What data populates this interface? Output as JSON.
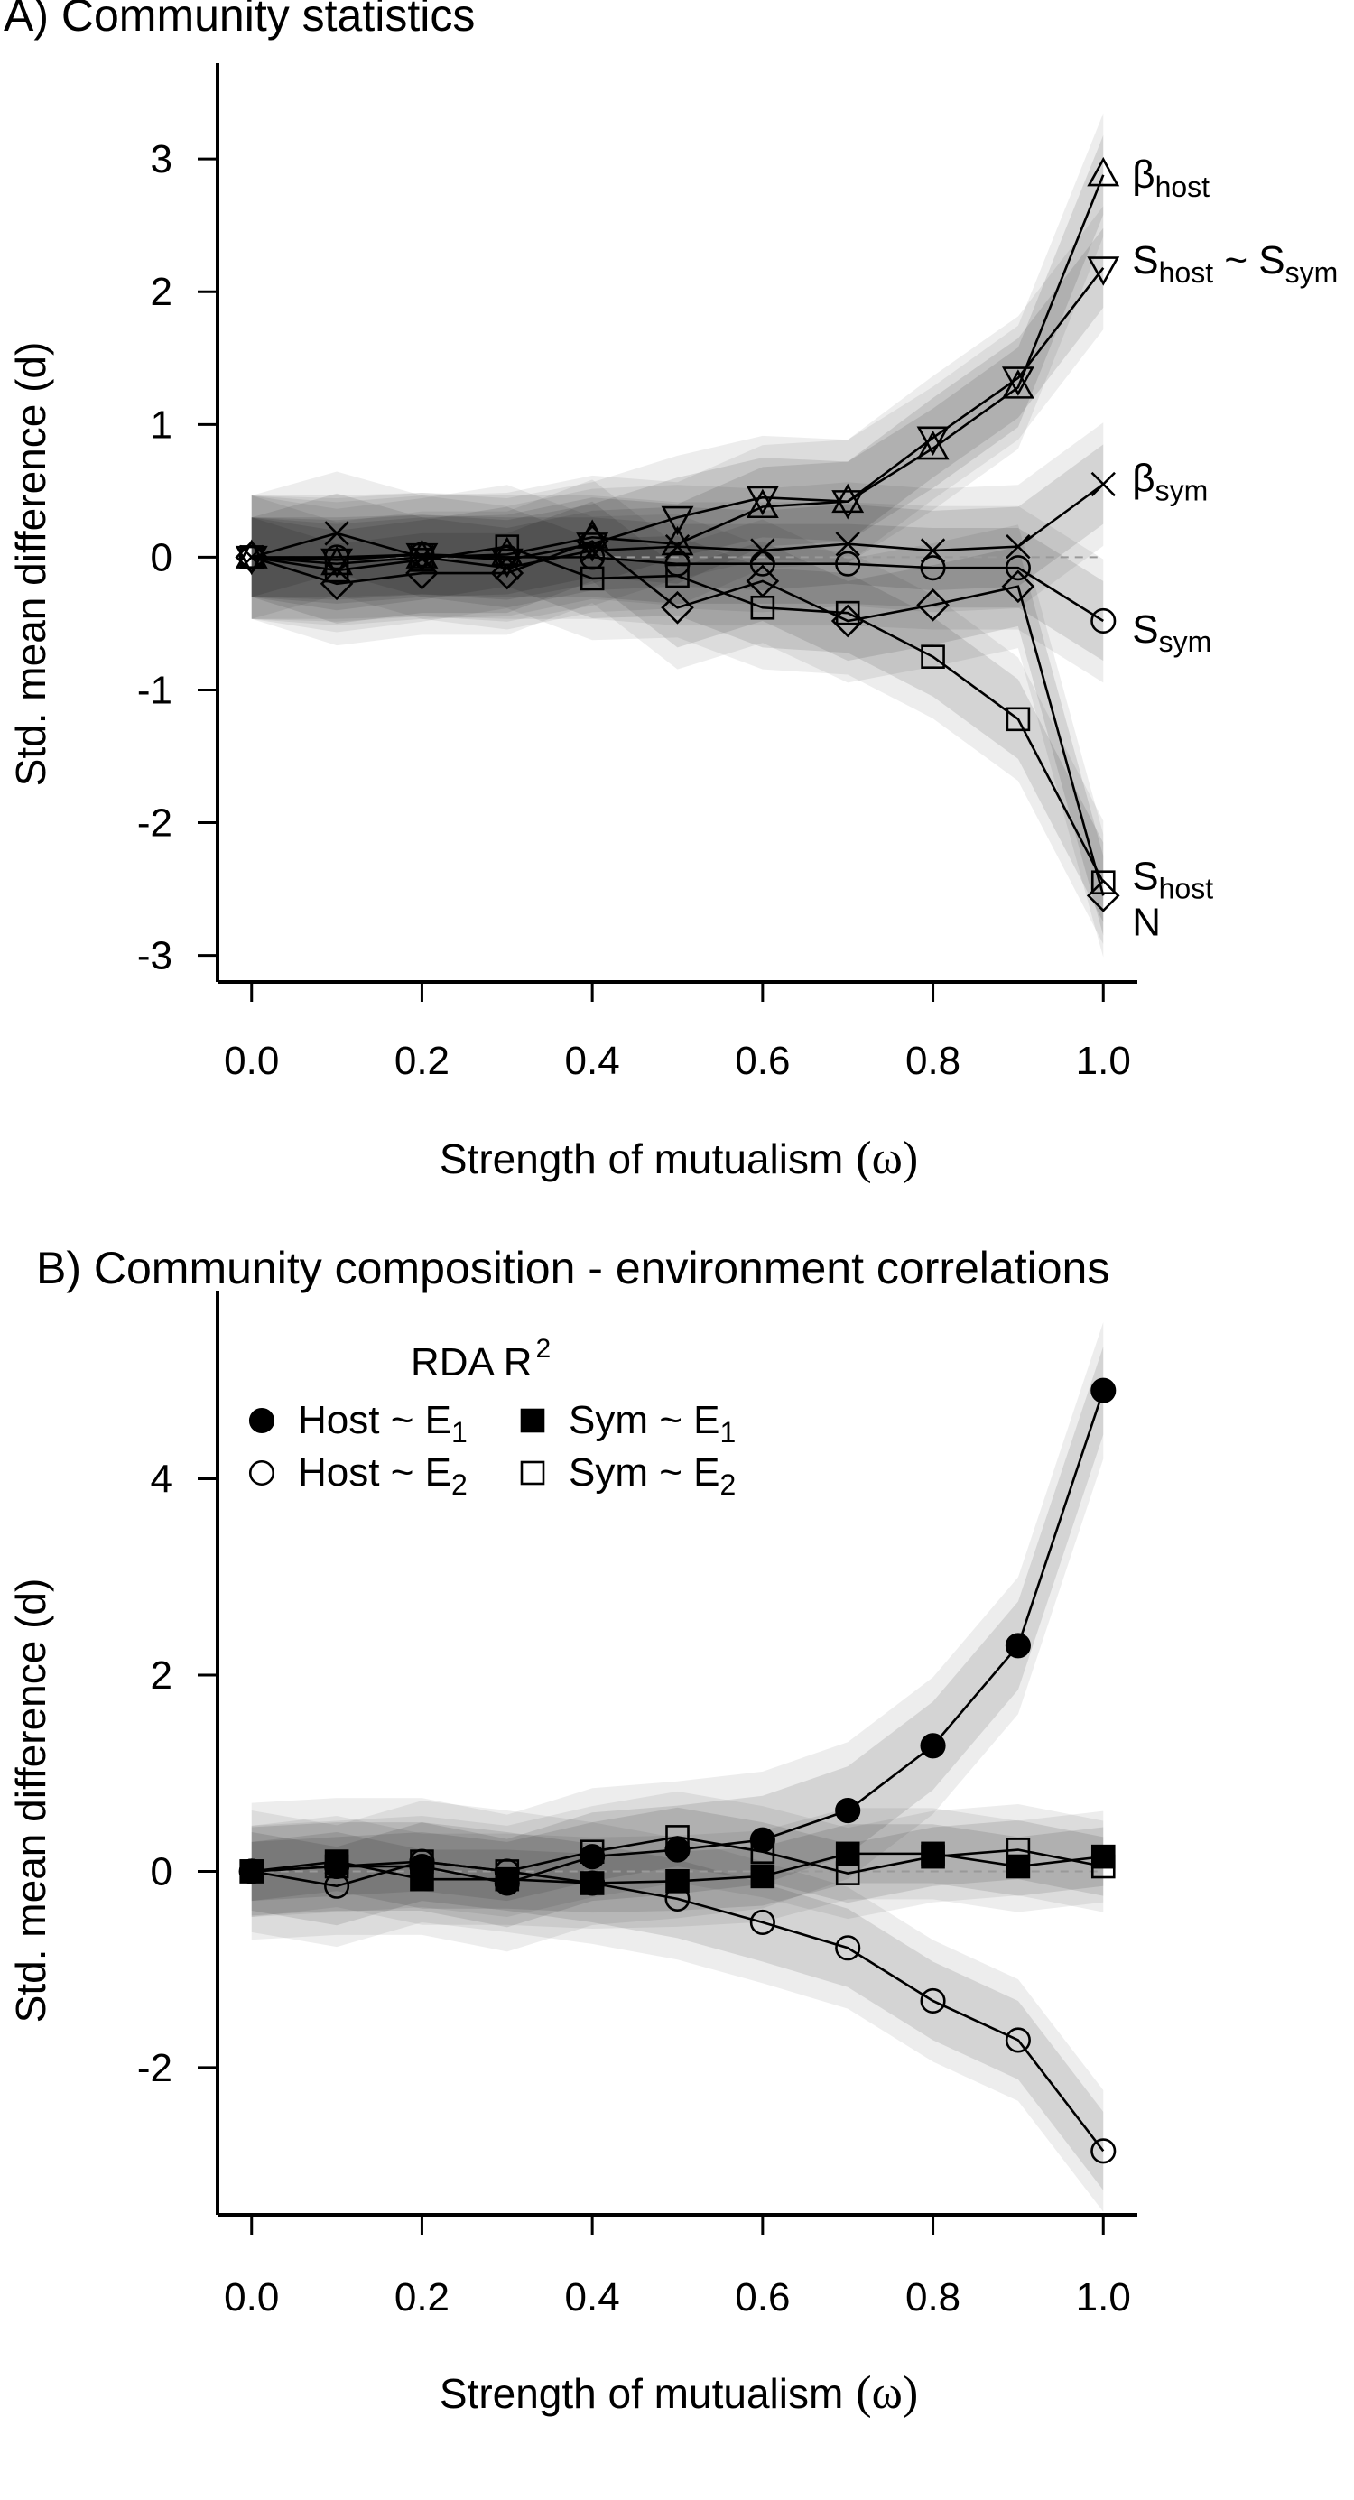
{
  "chart_data": [
    {
      "type": "line",
      "title": "A) Community statistics",
      "xlabel_prefix": "Strength  of  mutualism",
      "xlabel_symbol": "(ω)",
      "ylabel": "Std. mean difference (d)",
      "x": [
        0.0,
        0.1,
        0.2,
        0.3,
        0.4,
        0.5,
        0.6,
        0.7,
        0.8,
        0.9,
        1.0
      ],
      "xlim": [
        -0.04,
        1.04
      ],
      "ylim": [
        -3.2,
        3.45
      ],
      "xticks": [
        "0.0",
        "0.2",
        "0.4",
        "0.6",
        "0.8",
        "1.0"
      ],
      "yticks": [
        "3",
        "2",
        "1",
        "0",
        "-1",
        "-2",
        "-3"
      ],
      "reference_line": 0,
      "series": [
        {
          "marker": "triangle-up",
          "label_base": "β",
          "label_sub": "host",
          "values": [
            0,
            -0.05,
            0.0,
            0.02,
            0.15,
            0.1,
            0.38,
            0.42,
            0.82,
            1.28,
            2.88
          ],
          "band": 0.3
        },
        {
          "marker": "triangle-down",
          "label_parts": [
            "S",
            "host",
            " ~ ",
            "S",
            "sym"
          ],
          "values": [
            0,
            -0.02,
            0.02,
            -0.02,
            0.1,
            0.3,
            0.45,
            0.42,
            0.9,
            1.35,
            2.18
          ],
          "band": 0.3
        },
        {
          "marker": "x",
          "label_base": "β",
          "label_sub": "sym",
          "values": [
            0,
            0.18,
            0.0,
            -0.08,
            0.05,
            0.08,
            0.05,
            0.1,
            0.05,
            0.08,
            0.55
          ],
          "band": 0.3
        },
        {
          "marker": "circle",
          "label_base": "S",
          "label_sub": "sym",
          "values": [
            0,
            0.0,
            0.02,
            0.0,
            0.0,
            -0.05,
            -0.05,
            -0.05,
            -0.08,
            -0.08,
            -0.48
          ],
          "band": 0.3
        },
        {
          "marker": "square",
          "label_base": "S",
          "label_sub": "host",
          "values": [
            0,
            -0.1,
            -0.02,
            0.08,
            -0.16,
            -0.14,
            -0.38,
            -0.42,
            -0.75,
            -1.22,
            -2.45
          ],
          "band": 0.3
        },
        {
          "marker": "diamond",
          "label_base": "N",
          "values": [
            0,
            -0.2,
            -0.12,
            -0.12,
            0.12,
            -0.38,
            -0.18,
            -0.48,
            -0.36,
            -0.22,
            -2.55
          ],
          "band": 0.3
        }
      ]
    },
    {
      "type": "line",
      "title": "B) Community composition - environment correlations",
      "xlabel_prefix": "Strength  of  mutualism",
      "xlabel_symbol": "(ω)",
      "ylabel": "Std. mean difference (d)",
      "x": [
        0.0,
        0.1,
        0.2,
        0.3,
        0.4,
        0.5,
        0.6,
        0.7,
        0.8,
        0.9,
        1.0
      ],
      "xlim": [
        -0.04,
        1.04
      ],
      "ylim": [
        -3.5,
        5.55
      ],
      "xticks": [
        "0.0",
        "0.2",
        "0.4",
        "0.6",
        "0.8",
        "1.0"
      ],
      "yticks": [
        "4",
        "2",
        "0",
        "-2"
      ],
      "reference_line": 0,
      "legend_title_base": "RDA  R",
      "legend_title_sup": "2",
      "series": [
        {
          "marker": "filled-circle",
          "name_base": "Host ~ E",
          "name_sub": "1",
          "values": [
            0,
            0.05,
            0.05,
            -0.12,
            0.15,
            0.22,
            0.32,
            0.62,
            1.28,
            2.3,
            4.9
          ],
          "band": 0.45
        },
        {
          "marker": "circle",
          "name_base": "Host ~ E",
          "name_sub": "2",
          "values": [
            0,
            -0.15,
            0.1,
            0.0,
            -0.12,
            -0.28,
            -0.52,
            -0.78,
            -1.32,
            -1.72,
            -2.85
          ],
          "band": 0.4
        },
        {
          "marker": "filled-square",
          "name_base": "Sym ~ E",
          "name_sub": "1",
          "values": [
            0,
            0.1,
            -0.08,
            -0.08,
            -0.12,
            -0.1,
            -0.05,
            0.18,
            0.18,
            0.05,
            0.15
          ],
          "band": 0.3
        },
        {
          "marker": "square",
          "name_base": "Sym ~ E",
          "name_sub": "2",
          "values": [
            0,
            0.05,
            0.1,
            0.0,
            0.2,
            0.35,
            0.2,
            -0.02,
            0.15,
            0.22,
            0.05
          ],
          "band": 0.3
        }
      ]
    }
  ]
}
